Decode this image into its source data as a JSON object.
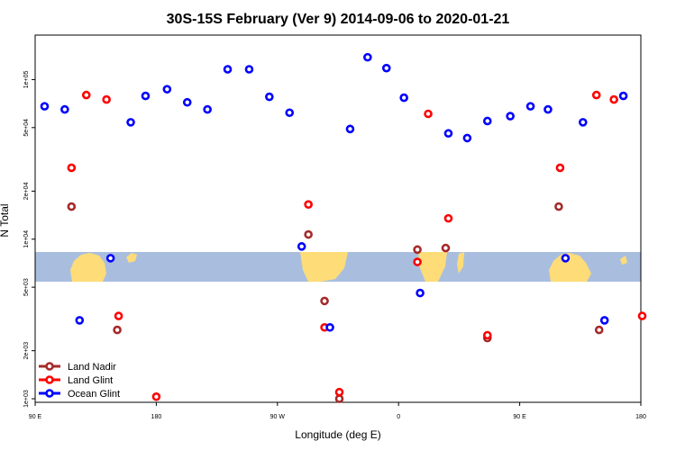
{
  "chart_data": {
    "type": "scatter",
    "title": "30S-15S February (Ver 9)   2014-09-06 to 2020-01-21",
    "xlabel": "Longitude (deg E)",
    "ylabel": "N Total",
    "x_axis": {
      "ticks": [
        90,
        180,
        270,
        360,
        450,
        540
      ],
      "tick_labels": [
        "90 E",
        "180",
        "90 W",
        "0",
        "90 E",
        "180"
      ],
      "range": [
        90,
        540
      ]
    },
    "y_axis": {
      "scale": "log",
      "ticks": [
        1000,
        2000,
        5000,
        10000,
        20000,
        50000,
        100000
      ],
      "tick_labels": [
        "1e+03",
        "2e+03",
        "5e+03",
        "1e+04",
        "2e+04",
        "5e+04",
        "1e+05"
      ],
      "range": [
        950,
        190000
      ]
    },
    "background_band": {
      "description": "world map strip (ocean and land) for the latitude band",
      "ocean_color": "#a9bedf",
      "land_color": "#fedc78",
      "y_range": [
        5000,
        8500
      ]
    },
    "legend": {
      "position": "bottom-left",
      "entries": [
        {
          "label": "Land Nadir",
          "color": "#a52a2a"
        },
        {
          "label": "Land Glint",
          "color": "#ff0000"
        },
        {
          "label": "Ocean Glint",
          "color": "#0000ff"
        }
      ]
    },
    "series": [
      {
        "name": "Land Nadir",
        "color": "#a52a2a",
        "points": [
          [
            117,
            16000
          ],
          [
            151,
            2700
          ],
          [
            293,
            10700
          ],
          [
            305,
            4100
          ],
          [
            316,
            1000
          ],
          [
            374,
            8600
          ],
          [
            395,
            8800
          ],
          [
            426,
            2400
          ],
          [
            479,
            16000
          ],
          [
            509,
            2700
          ]
        ]
      },
      {
        "name": "Land Glint",
        "color": "#ff0000",
        "points": [
          [
            117,
            28000
          ],
          [
            128,
            80000
          ],
          [
            143,
            75000
          ],
          [
            152,
            3300
          ],
          [
            180,
            1030
          ],
          [
            293,
            16500
          ],
          [
            305,
            2800
          ],
          [
            316,
            1100
          ],
          [
            374,
            7200
          ],
          [
            382,
            61000
          ],
          [
            397,
            13500
          ],
          [
            426,
            2500
          ],
          [
            480,
            28000
          ],
          [
            507,
            80000
          ],
          [
            520,
            75000
          ],
          [
            541,
            3300
          ]
        ]
      },
      {
        "name": "Ocean Glint",
        "color": "#0000ff",
        "points": [
          [
            97,
            68000
          ],
          [
            112,
            65000
          ],
          [
            123,
            3100
          ],
          [
            146,
            7600
          ],
          [
            161,
            54000
          ],
          [
            172,
            79000
          ],
          [
            188,
            87000
          ],
          [
            203,
            72000
          ],
          [
            218,
            65000
          ],
          [
            233,
            116000
          ],
          [
            249,
            116000
          ],
          [
            264,
            78000
          ],
          [
            279,
            62000
          ],
          [
            288,
            9000
          ],
          [
            309,
            2800
          ],
          [
            324,
            49000
          ],
          [
            337,
            138000
          ],
          [
            351,
            118000
          ],
          [
            364,
            77000
          ],
          [
            376,
            4600
          ],
          [
            397,
            46000
          ],
          [
            411,
            43000
          ],
          [
            426,
            55000
          ],
          [
            443,
            59000
          ],
          [
            458,
            68000
          ],
          [
            471,
            65000
          ],
          [
            484,
            7600
          ],
          [
            497,
            54000
          ],
          [
            513,
            3100
          ],
          [
            527,
            79000
          ]
        ]
      }
    ]
  }
}
